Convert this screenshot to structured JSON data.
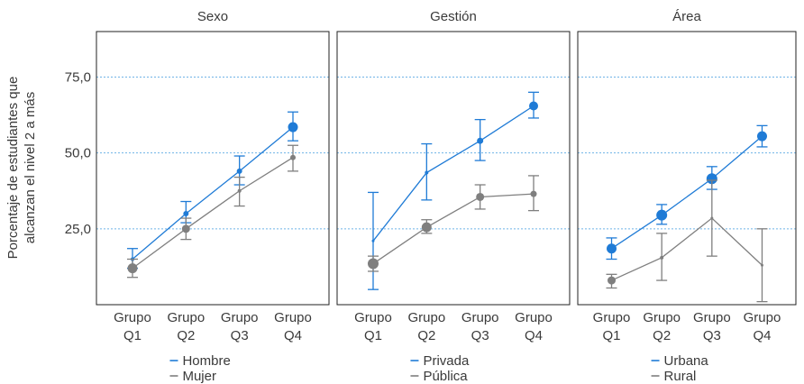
{
  "chart_data": {
    "type": "line",
    "ylabel_lines": [
      "Porcentaje de estudiantes que",
      "alcanzan el nivel 2 a más"
    ],
    "ylim": [
      0,
      90
    ],
    "yticks": [
      "25,0",
      "50,0",
      "75,0"
    ],
    "ytick_values": [
      25,
      50,
      75
    ],
    "categories": [
      [
        "Grupo",
        "Q1"
      ],
      [
        "Grupo",
        "Q2"
      ],
      [
        "Grupo",
        "Q3"
      ],
      [
        "Grupo",
        "Q4"
      ]
    ],
    "grid": "horizontal dotted at ticks",
    "legend_placement": "bottom",
    "colors": {
      "blue": "#1f7bd6",
      "gray": "#7f7f7f"
    },
    "panels": [
      {
        "title": "Sexo",
        "series": [
          {
            "name": "Hombre",
            "color": "#1f7bd6",
            "values": [
              15,
              30,
              44,
              58.5
            ],
            "lower": [
              12,
              27,
              39.5,
              54
            ],
            "upper": [
              18.5,
              34,
              49,
              63.5
            ],
            "marker_size": [
              2,
              3,
              3,
              5.5
            ]
          },
          {
            "name": "Mujer",
            "color": "#7f7f7f",
            "values": [
              12,
              25,
              37.5,
              48.5
            ],
            "lower": [
              9,
              21.5,
              32.5,
              44
            ],
            "upper": [
              15,
              28.5,
              42,
              52.5
            ],
            "marker_size": [
              5.5,
              4.5,
              2,
              3
            ]
          }
        ]
      },
      {
        "title": "Gestión",
        "series": [
          {
            "name": "Privada",
            "color": "#1f7bd6",
            "values": [
              21,
              43.5,
              54,
              65.5
            ],
            "lower": [
              5,
              34.5,
              47.5,
              61.5
            ],
            "upper": [
              37,
              53,
              61,
              70
            ],
            "marker_size": [
              1.5,
              2,
              3.5,
              5
            ]
          },
          {
            "name": "Pública",
            "color": "#7f7f7f",
            "values": [
              13.5,
              25.5,
              35.5,
              36.5
            ],
            "lower": [
              11,
              23.5,
              31.5,
              31
            ],
            "upper": [
              16,
              28,
              39.5,
              42.5
            ],
            "marker_size": [
              6,
              5.5,
              4.5,
              3.5
            ]
          }
        ]
      },
      {
        "title": "Área",
        "series": [
          {
            "name": "Urbana",
            "color": "#1f7bd6",
            "values": [
              18.5,
              29.5,
              41.5,
              55.5
            ],
            "lower": [
              15,
              26.5,
              38,
              52
            ],
            "upper": [
              22,
              33,
              45.5,
              59
            ],
            "marker_size": [
              5.5,
              6,
              6,
              5.5
            ]
          },
          {
            "name": "Rural",
            "color": "#7f7f7f",
            "values": [
              8,
              15.5,
              28.5,
              13
            ],
            "lower": [
              5.5,
              8,
              16,
              1
            ],
            "upper": [
              10,
              23.5,
              41,
              25
            ],
            "marker_size": [
              4.5,
              2,
              1.5,
              1.5
            ]
          }
        ]
      }
    ]
  }
}
